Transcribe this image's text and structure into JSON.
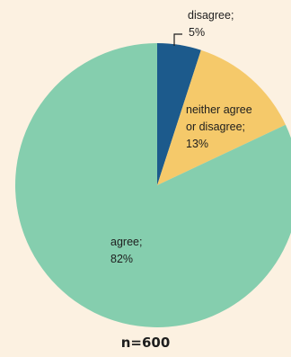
{
  "chart_data": {
    "type": "pie",
    "slices": [
      {
        "label_lines": [
          "disagree;",
          "5%"
        ],
        "value": 5,
        "color": "#1c5a8c"
      },
      {
        "label_lines": [
          "neither agree",
          "or disagree;",
          "13%"
        ],
        "value": 13,
        "color": "#f5c96a"
      },
      {
        "label_lines": [
          "agree;",
          "82%"
        ],
        "value": 82,
        "color": "#85ceae"
      }
    ],
    "start_angle_deg": 0,
    "direction": "clockwise",
    "legend": "none",
    "note": "n=600"
  }
}
